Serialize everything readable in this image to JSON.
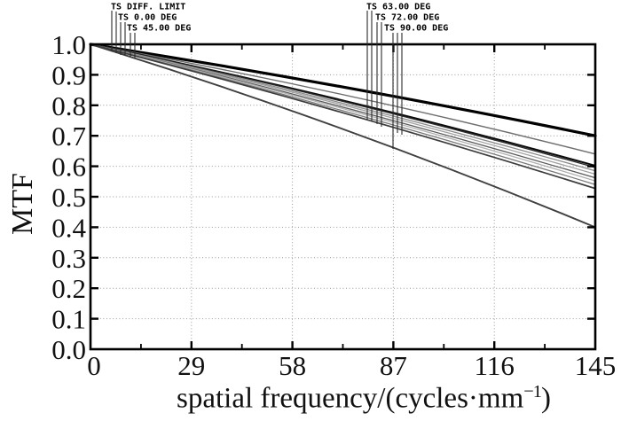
{
  "figure": {
    "background": "#ffffff",
    "frame_color": "#000000",
    "grid_color": "#999999",
    "leader_color": "#2a2a2a",
    "text_color": "#111111"
  },
  "chart_data": {
    "type": "line",
    "title": "",
    "xlabel": "spatial frequency/(cycles·mm⁻¹)",
    "xlabel_parts": {
      "prefix": "spatial frequency/(cycles·mm",
      "sup": "−1",
      "suffix": ")"
    },
    "ylabel": "MTF",
    "xlim": [
      0,
      145
    ],
    "ylim": [
      0.0,
      1.0
    ],
    "x_ticks": [
      0,
      29,
      58,
      87,
      116,
      145
    ],
    "x_minor_tick_step": 14.5,
    "y_ticks": [
      0.0,
      0.1,
      0.2,
      0.3,
      0.4,
      0.5,
      0.6,
      0.7,
      0.8,
      0.9,
      1.0
    ],
    "grid": "dotted",
    "legend_left": [
      {
        "label": "TS DIFF. LIMIT"
      },
      {
        "label": "TS 0.00 DEG"
      },
      {
        "label": "TS 45.00 DEG"
      }
    ],
    "legend_right": [
      {
        "label": "TS 63.00 DEG"
      },
      {
        "label": "TS 72.00 DEG"
      },
      {
        "label": "TS 90.00 DEG"
      }
    ],
    "series": [
      {
        "name": "TS DIFF. LIMIT",
        "mtf_at_0": 1.0,
        "mtf_at_145": 0.7,
        "bow": 0.01,
        "color": "#000000",
        "width": 3.2
      },
      {
        "name": "S 45.00 DEG",
        "mtf_at_0": 1.0,
        "mtf_at_145": 0.64,
        "bow": 0.015,
        "color": "#6e6e6e",
        "width": 1.4
      },
      {
        "name": "T 0.00 DEG",
        "mtf_at_0": 1.0,
        "mtf_at_145": 0.602,
        "bow": 0.015,
        "color": "#0a0a0a",
        "width": 2.0
      },
      {
        "name": "S 0.00 DEG",
        "mtf_at_0": 1.0,
        "mtf_at_145": 0.596,
        "bow": 0.015,
        "color": "#2b2b2b",
        "width": 1.4
      },
      {
        "name": "T 45.00 DEG",
        "mtf_at_0": 1.0,
        "mtf_at_145": 0.585,
        "bow": 0.014,
        "color": "#8a8a8a",
        "width": 1.3
      },
      {
        "name": "S 63.00 DEG",
        "mtf_at_0": 1.0,
        "mtf_at_145": 0.574,
        "bow": 0.014,
        "color": "#a0a0a0",
        "width": 1.3
      },
      {
        "name": "T 63.00 DEG",
        "mtf_at_0": 1.0,
        "mtf_at_145": 0.562,
        "bow": 0.013,
        "color": "#5a5a5a",
        "width": 1.3
      },
      {
        "name": "S 72.00 DEG",
        "mtf_at_0": 1.0,
        "mtf_at_145": 0.552,
        "bow": 0.013,
        "color": "#b0b0b0",
        "width": 1.3
      },
      {
        "name": "T 72.00 DEG",
        "mtf_at_0": 1.0,
        "mtf_at_145": 0.54,
        "bow": 0.012,
        "color": "#7a7a7a",
        "width": 1.3
      },
      {
        "name": "S 90.00 DEG",
        "mtf_at_0": 1.0,
        "mtf_at_145": 0.527,
        "bow": 0.012,
        "color": "#3d3d3d",
        "width": 1.7
      },
      {
        "name": "T 90.00 DEG",
        "mtf_at_0": 1.0,
        "mtf_at_145": 0.4,
        "bow": 0.022,
        "color": "#404040",
        "width": 1.9
      }
    ]
  }
}
